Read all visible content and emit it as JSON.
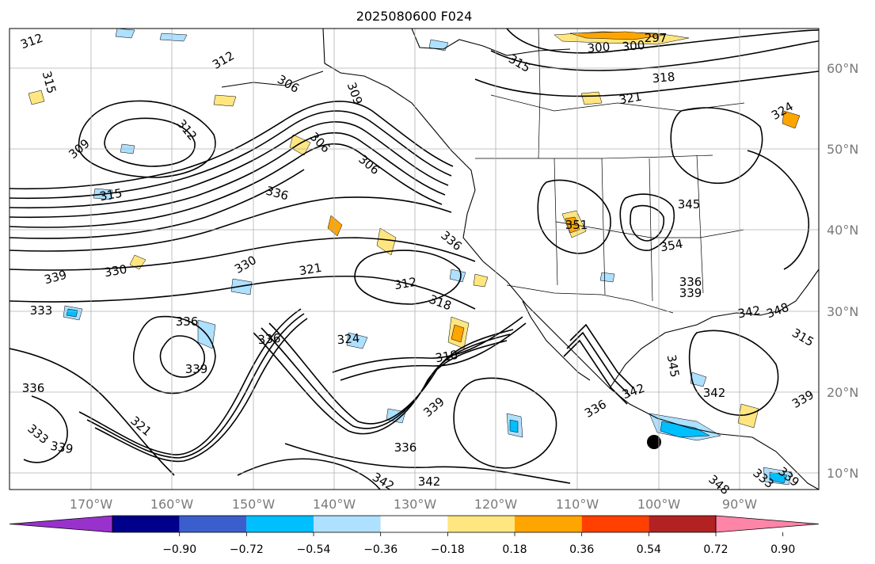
{
  "title": "2025080600 F024",
  "colors": {
    "contour": "#000000",
    "grid": "#b0b0b0",
    "axis_text": "#7a7a7a",
    "neg_strong": "#00bfff",
    "neg_weak": "#aee0ff",
    "pos_weak": "#ffe680",
    "pos_mid": "#ffa500"
  },
  "map": {
    "lon_ticks": [
      "170°W",
      "160°W",
      "150°W",
      "140°W",
      "130°W",
      "120°W",
      "110°W",
      "100°W",
      "90°W"
    ],
    "lat_ticks": [
      "60°N",
      "50°N",
      "40°N",
      "30°N",
      "20°N",
      "10°N"
    ],
    "contour_labels": [
      {
        "text": "312"
      },
      {
        "text": "315"
      },
      {
        "text": "312"
      },
      {
        "text": "306"
      },
      {
        "text": "309"
      },
      {
        "text": "312"
      },
      {
        "text": "309"
      },
      {
        "text": "336"
      },
      {
        "text": "306"
      },
      {
        "text": "315"
      },
      {
        "text": "306"
      },
      {
        "text": "297"
      },
      {
        "text": "300"
      },
      {
        "text": "300"
      },
      {
        "text": "315"
      },
      {
        "text": "318"
      },
      {
        "text": "321"
      },
      {
        "text": "324"
      },
      {
        "text": "339"
      },
      {
        "text": "330"
      },
      {
        "text": "333"
      },
      {
        "text": "330"
      },
      {
        "text": "321"
      },
      {
        "text": "336"
      },
      {
        "text": "336"
      },
      {
        "text": "339"
      },
      {
        "text": "312"
      },
      {
        "text": "318"
      },
      {
        "text": "324"
      },
      {
        "text": "318"
      },
      {
        "text": "336"
      },
      {
        "text": "339"
      },
      {
        "text": "336"
      },
      {
        "text": "321"
      },
      {
        "text": "333"
      },
      {
        "text": "342"
      },
      {
        "text": "339"
      },
      {
        "text": "351"
      },
      {
        "text": "354"
      },
      {
        "text": "345"
      },
      {
        "text": "336"
      },
      {
        "text": "339"
      },
      {
        "text": "342"
      },
      {
        "text": "345"
      },
      {
        "text": "336"
      },
      {
        "text": "342"
      },
      {
        "text": "339"
      },
      {
        "text": "348"
      },
      {
        "text": "342"
      },
      {
        "text": "336"
      },
      {
        "text": "333"
      },
      {
        "text": "339"
      },
      {
        "text": "315"
      },
      {
        "text": "348"
      },
      {
        "text": "342"
      }
    ]
  },
  "colorbar": {
    "colors": [
      "#9932cc",
      "#00008b",
      "#3a5fcd",
      "#00bfff",
      "#aee0ff",
      "#ffffff",
      "#ffe680",
      "#ffa500",
      "#ff4000",
      "#b22222",
      "#ff85a8"
    ],
    "tick_labels": [
      "−0.90",
      "−0.72",
      "−0.54",
      "−0.36",
      "−0.18",
      "0.18",
      "0.36",
      "0.54",
      "0.72",
      "0.90"
    ]
  }
}
